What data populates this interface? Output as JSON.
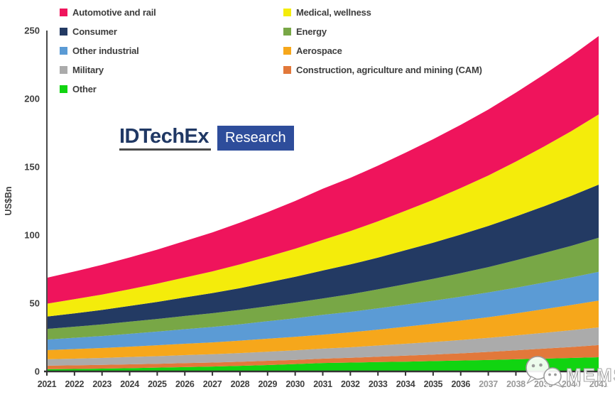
{
  "page": {
    "background": "#ffffff"
  },
  "legend": {
    "columns": [
      {
        "items": [
          {
            "label": "Automotive and rail",
            "color": "#EF145C"
          },
          {
            "label": "Consumer",
            "color": "#233A63"
          },
          {
            "label": "Other industrial",
            "color": "#5B9BD5"
          },
          {
            "label": "Military",
            "color": "#ABABAB"
          },
          {
            "label": "Other",
            "color": "#11D411"
          }
        ]
      },
      {
        "items": [
          {
            "label": "Medical, wellness",
            "color": "#F4EC0B"
          },
          {
            "label": "Energy",
            "color": "#78A746"
          },
          {
            "label": "Aerospace",
            "color": "#F6A71B"
          },
          {
            "label": "Construction, agriculture and mining (CAM)",
            "color": "#E2783A"
          }
        ]
      }
    ]
  },
  "logo": {
    "brand": "IDTechEx",
    "badge": "Research"
  },
  "watermark": {
    "text": "MEMS",
    "icon": "wechat-chat-bubbles-icon"
  },
  "colors": {
    "axis_line": "#4a4a4a",
    "x_axis_line": "#333333",
    "tick_label": "#3f3f3f",
    "faded_tick_label": "#9a9a9a",
    "logo_navy": "#203864",
    "logo_badge_bg": "#2E4D9B"
  },
  "chart_data": {
    "type": "area",
    "stacked": true,
    "title": "",
    "ylabel": "US$Bn",
    "xlabel": "",
    "ylim": [
      0,
      250
    ],
    "y_ticks": [
      0,
      50,
      100,
      150,
      200,
      250
    ],
    "grid": false,
    "legend_position": "top-left",
    "faded_year_from": 2037,
    "x": [
      2021,
      2022,
      2023,
      2024,
      2025,
      2026,
      2027,
      2028,
      2029,
      2030,
      2031,
      2032,
      2033,
      2034,
      2035,
      2036,
      2037,
      2038,
      2039,
      2040,
      2041
    ],
    "stack_order": "bottom-to-top",
    "series": [
      {
        "name": "Other",
        "color": "#11D411",
        "values": [
          1.6,
          1.8,
          2.1,
          2.4,
          2.8,
          3.2,
          3.6,
          4.1,
          4.7,
          5.4,
          6.2,
          6.5,
          6.9,
          7.2,
          7.6,
          8.0,
          8.4,
          8.9,
          9.4,
          9.9,
          10.4
        ]
      },
      {
        "name": "Construction, agriculture and mining (CAM)",
        "color": "#E2783A",
        "values": [
          2.6,
          2.7,
          2.7,
          2.8,
          2.8,
          2.9,
          2.9,
          3.0,
          3.1,
          3.1,
          3.2,
          3.5,
          3.9,
          4.4,
          4.8,
          5.3,
          5.9,
          6.6,
          7.3,
          8.0,
          8.9
        ]
      },
      {
        "name": "Military",
        "color": "#ABABAB",
        "values": [
          4.7,
          4.9,
          5.1,
          5.4,
          5.6,
          5.9,
          6.1,
          6.4,
          6.7,
          7.0,
          7.3,
          7.7,
          8.2,
          8.7,
          9.2,
          9.7,
          10.3,
          10.9,
          11.6,
          12.3,
          13.0
        ]
      },
      {
        "name": "Aerospace",
        "color": "#F6A71B",
        "values": [
          6.7,
          7.0,
          7.3,
          7.6,
          8.0,
          8.3,
          8.7,
          9.1,
          9.5,
          9.9,
          10.3,
          11.0,
          11.7,
          12.5,
          13.4,
          14.3,
          15.2,
          16.2,
          17.3,
          18.5,
          19.7
        ]
      },
      {
        "name": "Other industrial",
        "color": "#5B9BD5",
        "values": [
          7.8,
          8.3,
          8.8,
          9.4,
          10.0,
          10.7,
          11.3,
          12.0,
          12.8,
          13.6,
          14.5,
          15.0,
          15.6,
          16.2,
          16.8,
          17.5,
          18.1,
          18.8,
          19.5,
          20.2,
          21.0
        ]
      },
      {
        "name": "Energy",
        "color": "#78A746",
        "values": [
          7.8,
          8.1,
          8.5,
          8.9,
          9.3,
          9.7,
          10.1,
          10.5,
          11.0,
          11.5,
          12.0,
          12.9,
          13.9,
          15.0,
          16.1,
          17.3,
          18.6,
          20.1,
          21.6,
          23.2,
          25.0
        ]
      },
      {
        "name": "Consumer",
        "color": "#233A63",
        "values": [
          9.0,
          9.8,
          10.6,
          11.5,
          12.5,
          13.6,
          14.8,
          16.0,
          17.4,
          18.9,
          20.5,
          21.9,
          23.3,
          24.9,
          26.5,
          28.3,
          30.2,
          32.2,
          34.3,
          36.6,
          39.0
        ]
      },
      {
        "name": "Medical, wellness",
        "color": "#F4EC0B",
        "values": [
          9.5,
          10.4,
          11.3,
          12.3,
          13.4,
          14.6,
          15.9,
          17.4,
          18.9,
          20.6,
          22.5,
          24.4,
          26.6,
          28.9,
          31.4,
          34.1,
          37.0,
          40.2,
          43.7,
          47.4,
          51.5
        ]
      },
      {
        "name": "Automotive and rail",
        "color": "#EF145C",
        "values": [
          19.0,
          20.3,
          21.8,
          23.3,
          24.9,
          26.7,
          28.6,
          30.6,
          32.7,
          35.0,
          37.5,
          39.1,
          40.8,
          42.6,
          44.5,
          46.4,
          48.4,
          50.6,
          52.8,
          55.1,
          57.5
        ]
      }
    ]
  }
}
